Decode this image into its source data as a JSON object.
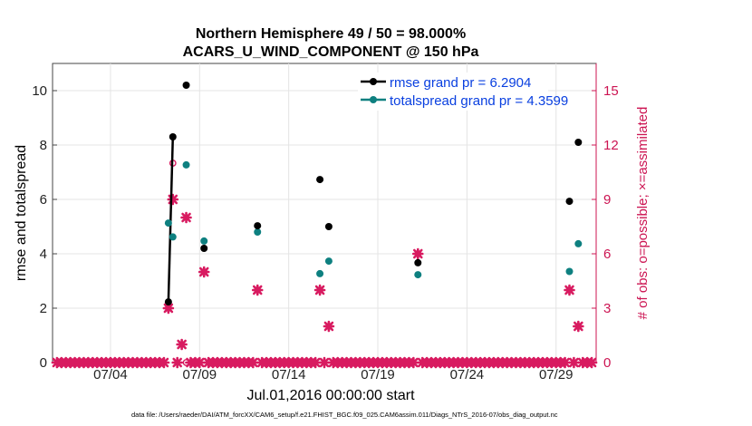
{
  "chart_data": {
    "type": "scatter",
    "title": "Northern Hemisphere 49 / 50 = 98.000%",
    "subtitle": "ACARS_U_WIND_COMPONENT @ 150 hPa",
    "xlabel": "Jul.01,2016 00:00:00 start",
    "ylabel": "rmse and totalspread",
    "y2label": "# of obs: o=possible; ×=assimilated",
    "x_tick_labels": [
      "07/04",
      "07/09",
      "07/14",
      "07/19",
      "07/24",
      "07/29"
    ],
    "x_tick_days": [
      4,
      9,
      14,
      19,
      24,
      29
    ],
    "xlim": [
      0.75,
      31.25
    ],
    "ylim": [
      0,
      11
    ],
    "y_ticks": [
      0,
      2,
      4,
      6,
      8,
      10
    ],
    "y2lim": [
      0,
      16.5
    ],
    "y2_ticks": [
      0,
      3,
      6,
      9,
      12,
      15
    ],
    "grid": true,
    "legend_position": "top-right",
    "colors": {
      "rmse": "#000000",
      "spread": "#0e8080",
      "obs": "#d81b60"
    },
    "series": [
      {
        "name": "rmse grand pr = 6.2904",
        "axis": "left",
        "marker": "circle",
        "connected_segment": [
          [
            7.25,
            2.23
          ],
          [
            7.5,
            8.3
          ]
        ],
        "points": [
          [
            7.25,
            2.23
          ],
          [
            7.5,
            8.3
          ],
          [
            8.25,
            10.2
          ],
          [
            9.25,
            4.2
          ],
          [
            12.25,
            5.03
          ],
          [
            15.75,
            6.73
          ],
          [
            16.25,
            5.0
          ],
          [
            21.25,
            3.67
          ],
          [
            29.75,
            5.93
          ],
          [
            30.25,
            8.1
          ]
        ]
      },
      {
        "name": "totalspread grand pr = 4.3599",
        "axis": "left",
        "marker": "circle",
        "connected_segment": [],
        "points": [
          [
            7.25,
            5.13
          ],
          [
            7.5,
            4.62
          ],
          [
            8.25,
            7.27
          ],
          [
            9.25,
            4.47
          ],
          [
            12.25,
            4.8
          ],
          [
            15.75,
            3.27
          ],
          [
            16.25,
            3.73
          ],
          [
            21.25,
            3.23
          ],
          [
            29.75,
            3.35
          ],
          [
            30.25,
            4.37
          ]
        ]
      },
      {
        "name": "# of obs possible",
        "axis": "right",
        "marker": "circle-open",
        "points": [
          [
            7.25,
            3
          ],
          [
            7.5,
            11
          ],
          [
            8.25,
            0
          ],
          [
            9.25,
            5
          ],
          [
            12.25,
            4
          ],
          [
            15.75,
            4
          ],
          [
            16.25,
            2
          ],
          [
            21.25,
            6
          ],
          [
            29.75,
            4
          ],
          [
            30.25,
            2
          ]
        ]
      },
      {
        "name": "# of obs assimilated",
        "axis": "right",
        "marker": "cross",
        "note": "assimilated count per 6-h bin; zero elsewhere",
        "points": [
          [
            7.25,
            3
          ],
          [
            7.5,
            9
          ],
          [
            8.0,
            1
          ],
          [
            8.25,
            8
          ],
          [
            9.25,
            5
          ],
          [
            12.25,
            4
          ],
          [
            15.75,
            4
          ],
          [
            16.25,
            2
          ],
          [
            21.25,
            6
          ],
          [
            29.75,
            4
          ],
          [
            30.25,
            2
          ]
        ]
      }
    ],
    "footer": "data file: /Users/raeder/DAI/ATM_forcXX/CAM6_setup/f.e21.FHIST_BGC.f09_025.CAM6assim.011/Diags_NTrS_2016-07/obs_diag_output.nc"
  }
}
